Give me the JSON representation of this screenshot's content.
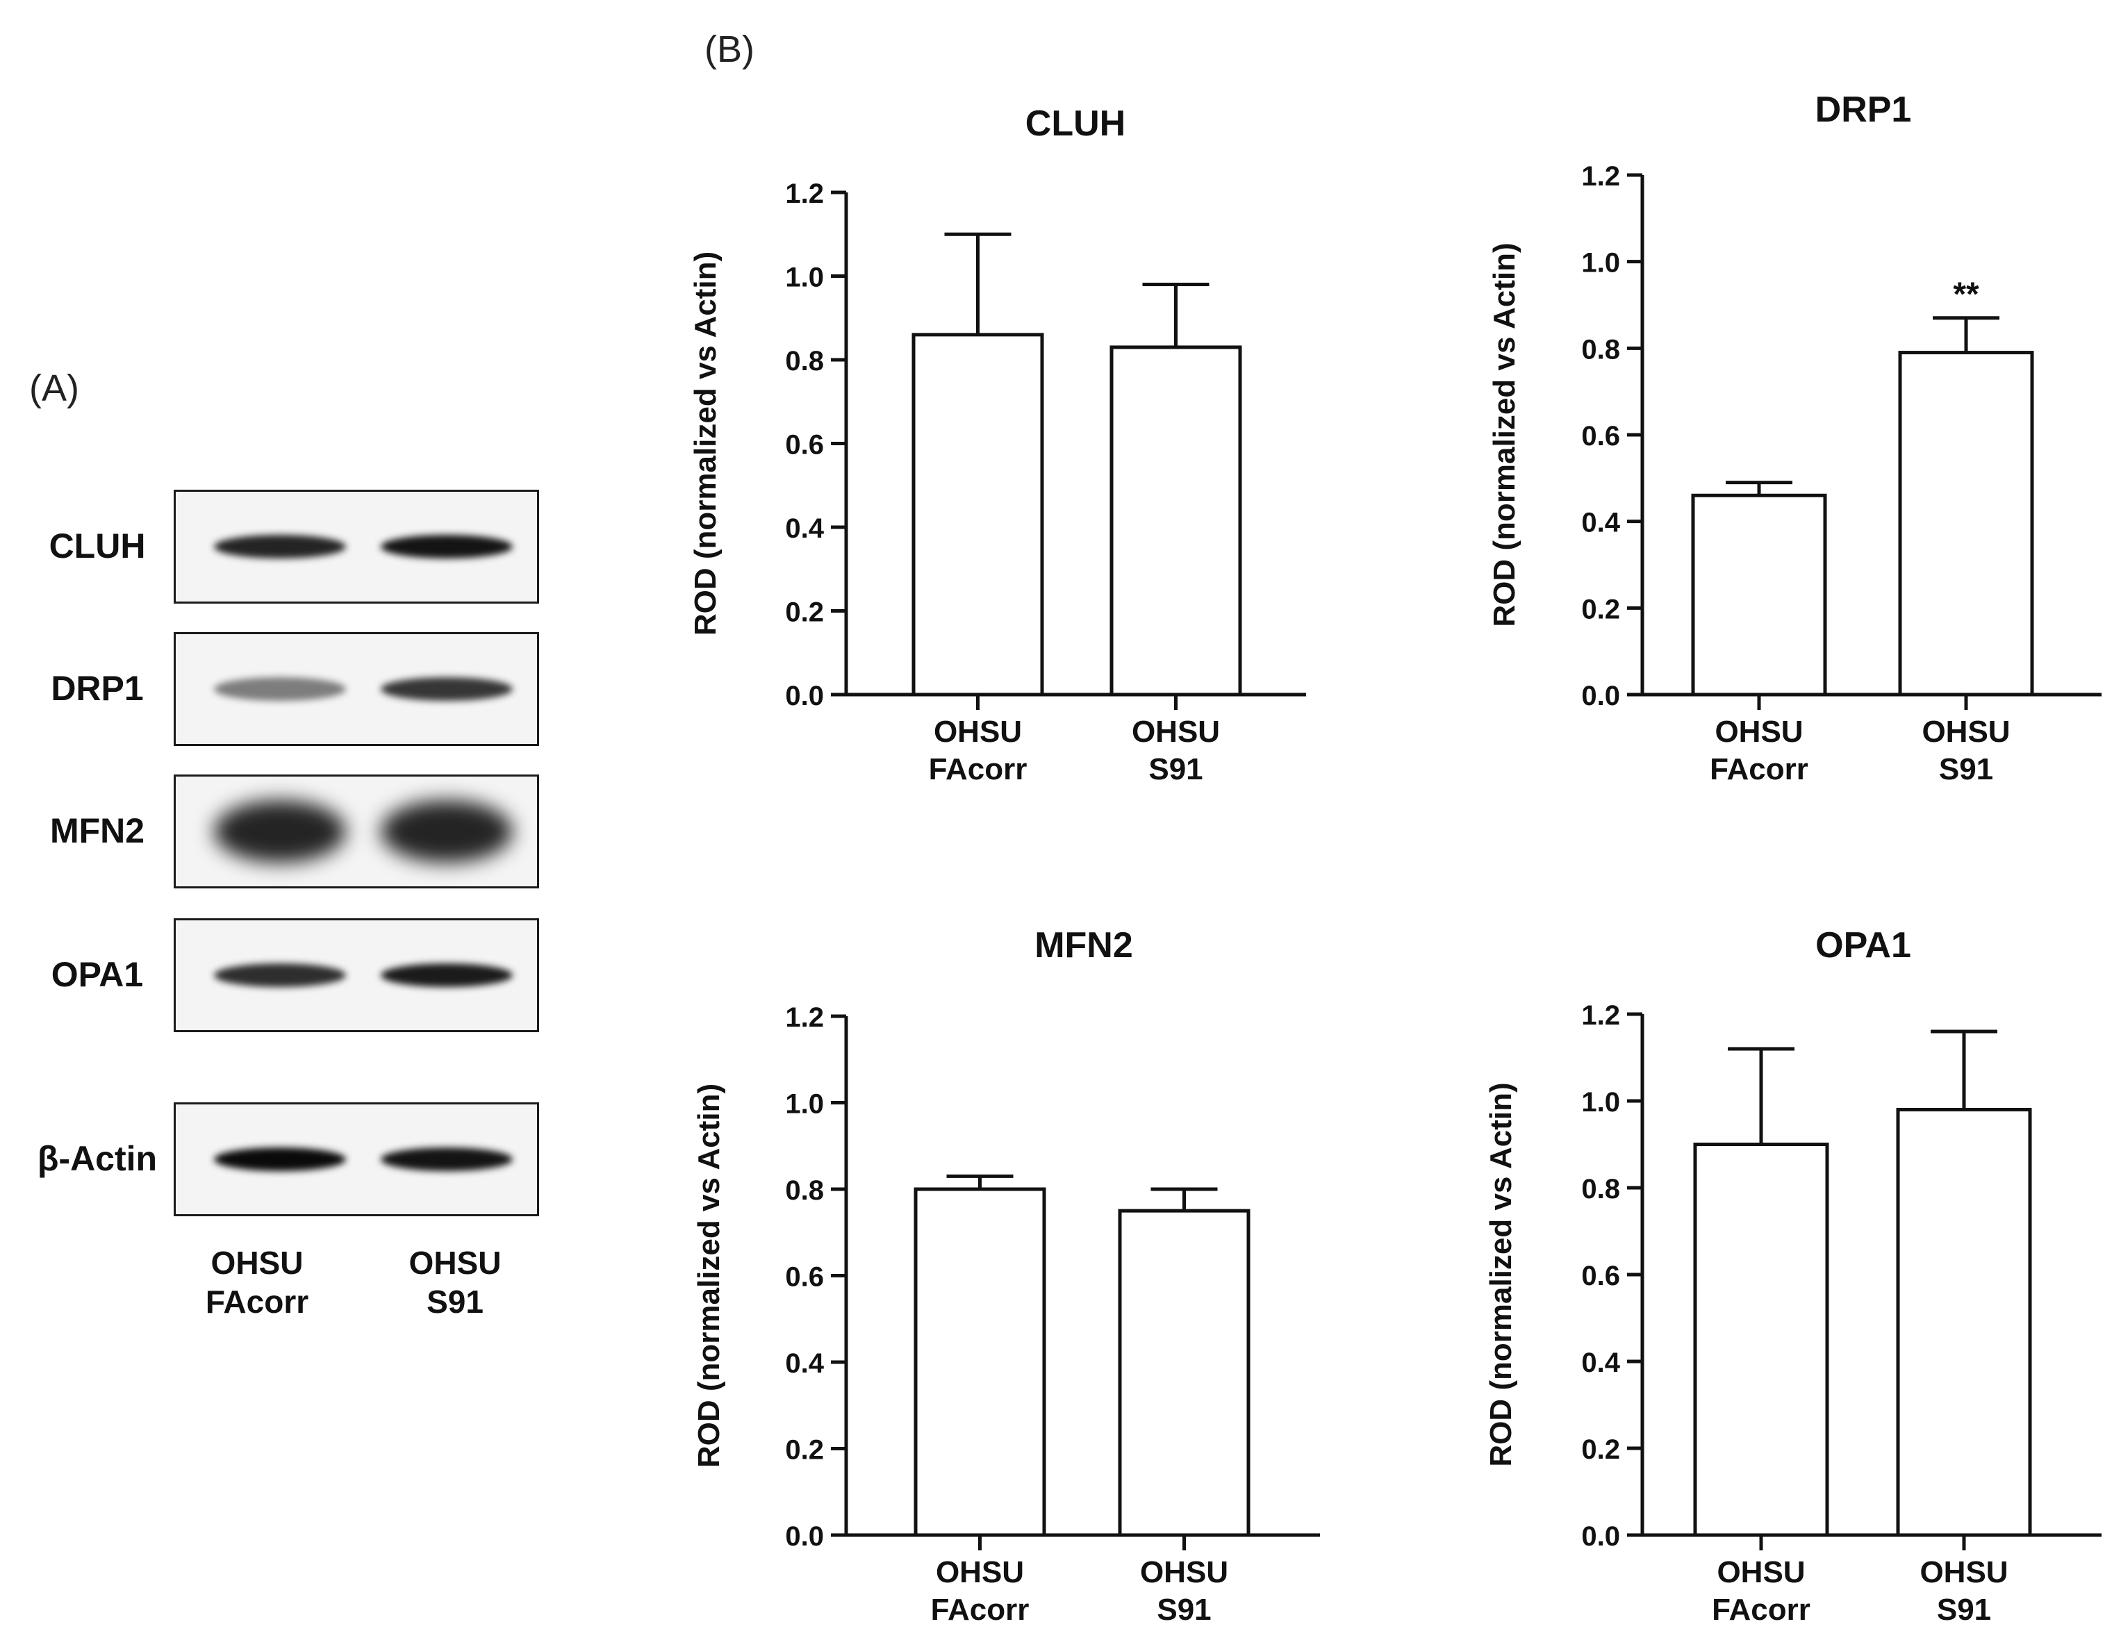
{
  "panel_labels": {
    "a": "(A)",
    "b": "(B)"
  },
  "blot": {
    "rows": [
      {
        "name": "CLUH",
        "bands": [
          0.85,
          0.95
        ]
      },
      {
        "name": "DRP1",
        "bands": [
          0.35,
          0.75
        ]
      },
      {
        "name": "MFN2",
        "bands": [
          0.85,
          0.85
        ]
      },
      {
        "name": "OPA1",
        "bands": [
          0.8,
          0.9
        ]
      },
      {
        "name": "β-Actin",
        "bands": [
          1.0,
          0.95
        ]
      }
    ],
    "lanes": [
      {
        "line1": "OHSU",
        "line2": "FAcorr"
      },
      {
        "line1": "OHSU",
        "line2": "S91"
      }
    ]
  },
  "chart_data": [
    {
      "type": "bar",
      "title": "CLUH",
      "ylabel": "ROD (normalized vs Actin)",
      "ylim": [
        0,
        1.2
      ],
      "yticks": [
        "0.0",
        "0.2",
        "0.4",
        "0.6",
        "0.8",
        "1.0",
        "1.2"
      ],
      "categories": [
        [
          "OHSU",
          "FAcorr"
        ],
        [
          "OHSU",
          "S91"
        ]
      ],
      "values": [
        0.86,
        0.83
      ],
      "errors": [
        0.24,
        0.15
      ],
      "annotations": [
        "",
        ""
      ]
    },
    {
      "type": "bar",
      "title": "DRP1",
      "ylabel": "ROD (normalized vs Actin)",
      "ylim": [
        0,
        1.2
      ],
      "yticks": [
        "0.0",
        "0.2",
        "0.4",
        "0.6",
        "0.8",
        "1.0",
        "1.2"
      ],
      "categories": [
        [
          "OHSU",
          "FAcorr"
        ],
        [
          "OHSU",
          "S91"
        ]
      ],
      "values": [
        0.46,
        0.79
      ],
      "errors": [
        0.03,
        0.08
      ],
      "annotations": [
        "",
        "**"
      ]
    },
    {
      "type": "bar",
      "title": "MFN2",
      "ylabel": "ROD (normalized vs Actin)",
      "ylim": [
        0,
        1.2
      ],
      "yticks": [
        "0.0",
        "0.2",
        "0.4",
        "0.6",
        "0.8",
        "1.0",
        "1.2"
      ],
      "categories": [
        [
          "OHSU",
          "FAcorr"
        ],
        [
          "OHSU",
          "S91"
        ]
      ],
      "values": [
        0.8,
        0.75
      ],
      "errors": [
        0.03,
        0.05
      ],
      "annotations": [
        "",
        ""
      ]
    },
    {
      "type": "bar",
      "title": "OPA1",
      "ylabel": "ROD (normalized vs Actin)",
      "ylim": [
        0,
        1.2
      ],
      "yticks": [
        "0.0",
        "0.2",
        "0.4",
        "0.6",
        "0.8",
        "1.0",
        "1.2"
      ],
      "categories": [
        [
          "OHSU",
          "FAcorr"
        ],
        [
          "OHSU",
          "S91"
        ]
      ],
      "values": [
        0.9,
        0.98
      ],
      "errors": [
        0.22,
        0.18
      ],
      "annotations": [
        "",
        ""
      ]
    }
  ]
}
